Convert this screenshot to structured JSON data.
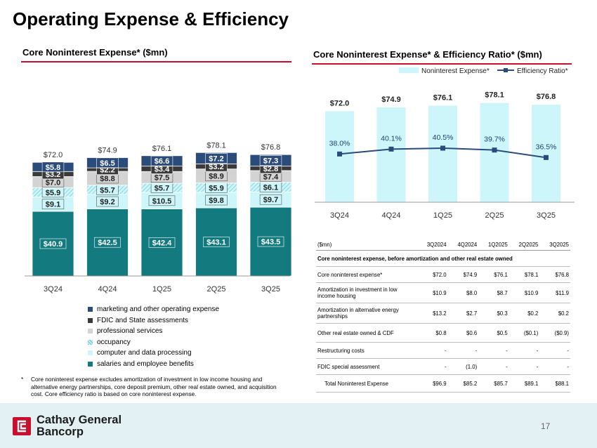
{
  "title": "Operating Expense & Efficiency",
  "left_chart": {
    "panel_title": "Core Noninterest Expense* ($mn)",
    "chart_data": {
      "type": "bar",
      "stacked": true,
      "categories": [
        "3Q24",
        "4Q24",
        "1Q25",
        "2Q25",
        "3Q25"
      ],
      "series": [
        {
          "name": "salaries and employee benefits",
          "values": [
            40.9,
            42.5,
            42.4,
            43.1,
            43.5
          ],
          "labels": [
            "$40.9",
            "$42.5",
            "$42.4",
            "$43.1",
            "$43.5"
          ],
          "color": "#137a7f"
        },
        {
          "name": "computer and data processing",
          "values": [
            9.1,
            9.2,
            10.5,
            9.8,
            9.7
          ],
          "labels": [
            "$9.1",
            "$9.2",
            "$10.5",
            "$9.8",
            "$9.7"
          ],
          "color": "#ccf6fa"
        },
        {
          "name": "occupancy",
          "values": [
            5.9,
            5.7,
            5.7,
            5.9,
            6.1
          ],
          "labels": [
            "$5.9",
            "$5.7",
            "$5.7",
            "$5.9",
            "$6.1"
          ],
          "color": "#9fe3ea"
        },
        {
          "name": "professional services",
          "values": [
            7.0,
            8.8,
            7.5,
            8.9,
            7.4
          ],
          "labels": [
            "$7.0",
            "$8.8",
            "$7.5",
            "$8.9",
            "$7.4"
          ],
          "color": "#d3d3d3"
        },
        {
          "name": "FDIC and State assessments",
          "values": [
            3.2,
            2.2,
            3.4,
            3.2,
            2.8
          ],
          "labels": [
            "$3.2",
            "$2.2",
            "$3.4",
            "$3.2",
            "$2.8"
          ],
          "color": "#3a3a3a"
        },
        {
          "name": "marketing and other operating expense",
          "values": [
            5.8,
            6.5,
            6.6,
            7.2,
            7.3
          ],
          "labels": [
            "$5.8",
            "$6.5",
            "$6.6",
            "$7.2",
            "$7.3"
          ],
          "color": "#2b4c7a"
        }
      ],
      "totals": [
        72.0,
        74.9,
        76.1,
        78.1,
        76.8
      ],
      "total_labels": [
        "$72.0",
        "$74.9",
        "$76.1",
        "$78.1",
        "$76.8"
      ],
      "legend_order": [
        "marketing and other operating expense",
        "FDIC and State assessments",
        "professional services",
        "occupancy",
        "computer and data processing",
        "salaries and employee benefits"
      ],
      "legend_position": "bottom"
    }
  },
  "right_chart": {
    "panel_title": "Core Noninterest Expense* & Efficiency Ratio* ($mn)",
    "chart_data": {
      "type": "bar",
      "categories": [
        "3Q24",
        "4Q24",
        "1Q25",
        "2Q25",
        "3Q25"
      ],
      "series": [
        {
          "name": "Noninterest Expense*",
          "type": "bar",
          "values": [
            72.0,
            74.9,
            76.1,
            78.1,
            76.8
          ],
          "labels": [
            "$72.0",
            "$74.9",
            "$76.1",
            "$78.1",
            "$76.8"
          ],
          "color": "#ccf6fa"
        },
        {
          "name": "Efficiency Ratio*",
          "type": "line",
          "values": [
            38.0,
            40.1,
            40.5,
            39.7,
            36.5
          ],
          "labels": [
            "38.0%",
            "40.1%",
            "40.5%",
            "39.7%",
            "36.5%"
          ],
          "color": "#2b4c7a"
        }
      ],
      "legend_position": "top"
    }
  },
  "table": {
    "headers": [
      "($mn)",
      "3Q2024",
      "4Q2024",
      "1Q2025",
      "2Q2025",
      "3Q2025"
    ],
    "section_label": "Core noninterest expense, before amortization and other real estate owned",
    "rows": [
      {
        "label": "Core noninterest expense*",
        "values": [
          "$72.0",
          "$74.9",
          "$76.1",
          "$78.1",
          "$76.8"
        ]
      },
      {
        "label": "Amortization in investment in low income housing",
        "values": [
          "$10.9",
          "$8.0",
          "$8.7",
          "$10.9",
          "$11.9"
        ]
      },
      {
        "label": "Amortization in alternative energy partnerships",
        "values": [
          "$13.2",
          "$2.7",
          "$0.3",
          "$0.2",
          "$0.2"
        ]
      },
      {
        "label": "Other real estate owned & CDF",
        "values": [
          "$0.8",
          "$0.6",
          "$0.5",
          "($0.1)",
          "($0.9)"
        ]
      },
      {
        "label": "Restructuring costs",
        "values": [
          "-",
          "-",
          "-",
          "-",
          "-"
        ]
      },
      {
        "label": "FDIC special assessment",
        "values": [
          "-",
          "(1.0)",
          "-",
          "-",
          "-"
        ]
      },
      {
        "label": "Total Noninterest Expense",
        "values": [
          "$96.9",
          "$85.2",
          "$85.7",
          "$89.1",
          "$88.1"
        ],
        "total": true
      }
    ]
  },
  "footnote": {
    "marker": "*",
    "text": "Core noninterest expense excludes amortization of investment in low income housing and alternative energy partnerships, core deposit premium, other real estate owned, and acquisition cost. Core efficiency ratio is based on core noninterest expense."
  },
  "footer": {
    "company_line1": "Cathay General",
    "company_line2": "Bancorp",
    "page_number": "17",
    "logo_icon": "cathay-logo-icon",
    "brand_color": "#c8102e"
  }
}
